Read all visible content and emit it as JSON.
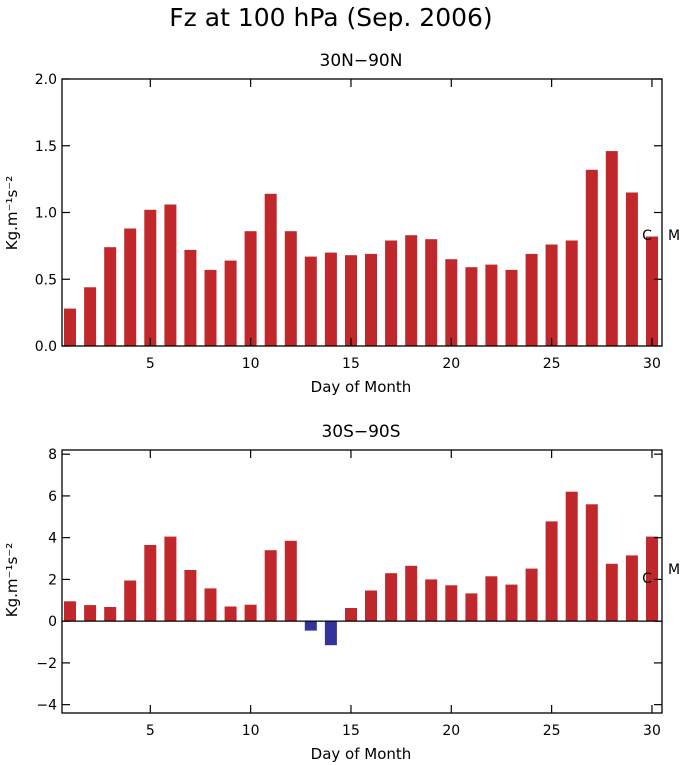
{
  "title": "Fz at 100 hPa (Sep. 2006)",
  "colors": {
    "positive": "#c0282c",
    "negative": "#333399"
  },
  "chart_data": [
    {
      "type": "bar",
      "title": "30N−90N",
      "xlabel": "Day of Month",
      "ylabel": "Kg.m⁻¹s⁻²",
      "xlim": [
        0.6,
        30.5
      ],
      "ylim": [
        0,
        2
      ],
      "yticks": [
        0.0,
        0.5,
        1.0,
        1.5,
        2.0
      ],
      "ytick_labels": [
        "0.0",
        "0.5",
        "1.0",
        "1.5",
        "2.0"
      ],
      "xticks": [
        5,
        10,
        15,
        20,
        25,
        30
      ],
      "xtick_labels": [
        "5",
        "10",
        "15",
        "20",
        "25",
        "30"
      ],
      "annotations": [
        "C",
        "M"
      ],
      "x": [
        1,
        2,
        3,
        4,
        5,
        6,
        7,
        8,
        9,
        10,
        11,
        12,
        13,
        14,
        15,
        16,
        17,
        18,
        19,
        20,
        21,
        22,
        23,
        24,
        25,
        26,
        27,
        28,
        29,
        30
      ],
      "values": [
        0.28,
        0.44,
        0.74,
        0.88,
        1.02,
        1.06,
        0.72,
        0.57,
        0.64,
        0.86,
        1.14,
        0.86,
        0.67,
        0.7,
        0.68,
        0.69,
        0.79,
        0.83,
        0.8,
        0.65,
        0.59,
        0.61,
        0.57,
        0.69,
        0.76,
        0.79,
        1.32,
        1.46,
        1.15,
        0.82
      ]
    },
    {
      "type": "bar",
      "title": "30S−90S",
      "xlabel": "Day of Month",
      "ylabel": "Kg.m⁻¹s⁻²",
      "xlim": [
        0.6,
        30.5
      ],
      "ylim": [
        -4.4,
        8.2
      ],
      "yticks": [
        -4,
        -2,
        0,
        2,
        4,
        6,
        8
      ],
      "ytick_labels": [
        "−4",
        "−2",
        "0",
        "2",
        "4",
        "6",
        "8"
      ],
      "xticks": [
        5,
        10,
        15,
        20,
        25,
        30
      ],
      "xtick_labels": [
        "5",
        "10",
        "15",
        "20",
        "25",
        "30"
      ],
      "annotations": [
        "C",
        "M"
      ],
      "x": [
        1,
        2,
        3,
        4,
        5,
        6,
        7,
        8,
        9,
        10,
        11,
        12,
        13,
        14,
        15,
        16,
        17,
        18,
        19,
        20,
        21,
        22,
        23,
        24,
        25,
        26,
        27,
        28,
        29,
        30
      ],
      "values": [
        0.95,
        0.77,
        0.68,
        1.95,
        3.65,
        4.05,
        2.45,
        1.57,
        0.7,
        0.79,
        3.4,
        3.85,
        -0.45,
        -1.15,
        0.63,
        1.47,
        2.3,
        2.65,
        2.0,
        1.72,
        1.33,
        2.15,
        1.75,
        2.52,
        4.78,
        6.2,
        5.6,
        2.75,
        3.15,
        4.05
      ]
    }
  ]
}
